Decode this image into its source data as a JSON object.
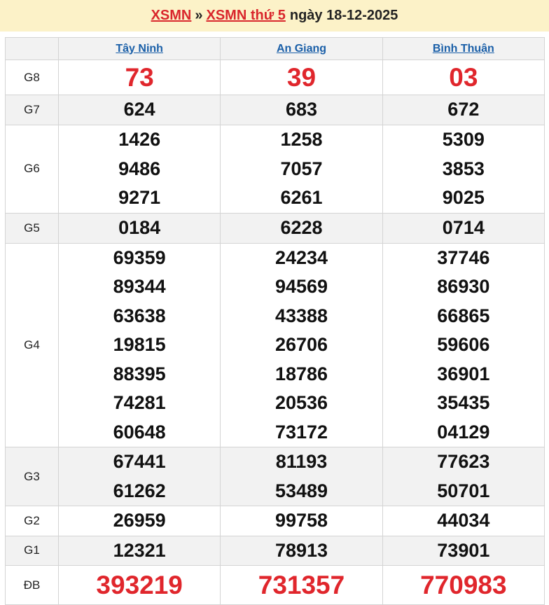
{
  "breadcrumb": {
    "home": "XSMN",
    "separator": "»",
    "day_link": "XSMN thứ 5",
    "date_text": "ngày 18-12-2025"
  },
  "colors": {
    "accent_red": "#e0262c",
    "link_blue": "#1a5fa8",
    "header_bg": "#fcf2c8"
  },
  "provinces": [
    "Tây Ninh",
    "An Giang",
    "Bình Thuận"
  ],
  "prizes": [
    {
      "label": "G8",
      "results": [
        [
          "73"
        ],
        [
          "39"
        ],
        [
          "03"
        ]
      ]
    },
    {
      "label": "G7",
      "results": [
        [
          "624"
        ],
        [
          "683"
        ],
        [
          "672"
        ]
      ]
    },
    {
      "label": "G6",
      "results": [
        [
          "1426",
          "9486",
          "9271"
        ],
        [
          "1258",
          "7057",
          "6261"
        ],
        [
          "5309",
          "3853",
          "9025"
        ]
      ]
    },
    {
      "label": "G5",
      "results": [
        [
          "0184"
        ],
        [
          "6228"
        ],
        [
          "0714"
        ]
      ]
    },
    {
      "label": "G4",
      "results": [
        [
          "69359",
          "89344",
          "63638",
          "19815",
          "88395",
          "74281",
          "60648"
        ],
        [
          "24234",
          "94569",
          "43388",
          "26706",
          "18786",
          "20536",
          "73172"
        ],
        [
          "37746",
          "86930",
          "66865",
          "59606",
          "36901",
          "35435",
          "04129"
        ]
      ]
    },
    {
      "label": "G3",
      "results": [
        [
          "67441",
          "61262"
        ],
        [
          "81193",
          "53489"
        ],
        [
          "77623",
          "50701"
        ]
      ]
    },
    {
      "label": "G2",
      "results": [
        [
          "26959"
        ],
        [
          "99758"
        ],
        [
          "44034"
        ]
      ]
    },
    {
      "label": "G1",
      "results": [
        [
          "12321"
        ],
        [
          "78913"
        ],
        [
          "73901"
        ]
      ]
    },
    {
      "label": "ĐB",
      "results": [
        [
          "393219"
        ],
        [
          "731357"
        ],
        [
          "770983"
        ]
      ]
    }
  ]
}
